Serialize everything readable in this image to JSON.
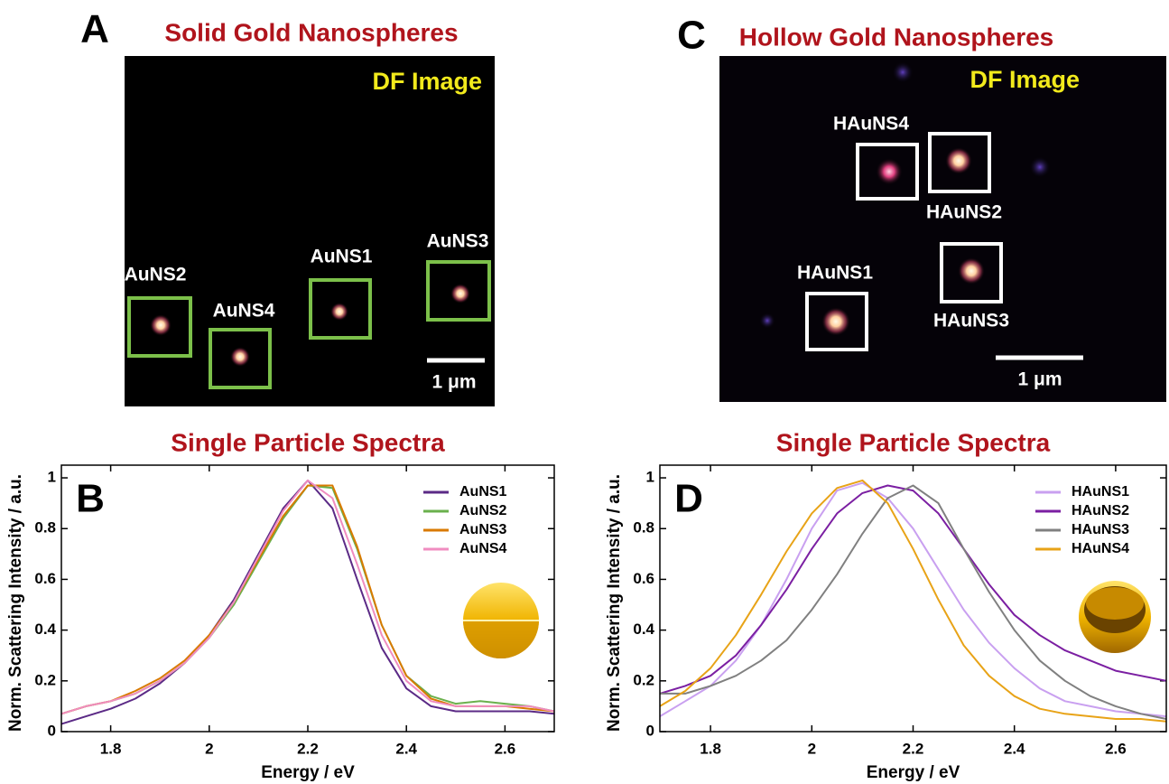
{
  "figure": {
    "panel_a": {
      "letter": "A",
      "title": "Solid Gold Nanospheres",
      "overlay": "DF Image",
      "scale_bar": "1 μm",
      "particles": [
        "AuNS2",
        "AuNS4",
        "AuNS1",
        "AuNS3"
      ]
    },
    "panel_c": {
      "letter": "C",
      "title": "Hollow Gold Nanospheres",
      "overlay": "DF Image",
      "scale_bar": "1 μm",
      "particles": [
        "HAuNS4",
        "HAuNS2",
        "HAuNS1",
        "HAuNS3"
      ]
    }
  },
  "chart_data": [
    {
      "type": "line",
      "letter": "B",
      "title": "Single Particle Spectra",
      "x_label": "Energy / eV",
      "y_label": "Norm. Scattering Intensity / a.u.",
      "x": [
        1.7,
        1.75,
        1.8,
        1.85,
        1.9,
        1.95,
        2.0,
        2.05,
        2.1,
        2.15,
        2.2,
        2.25,
        2.3,
        2.35,
        2.4,
        2.45,
        2.5,
        2.55,
        2.6,
        2.65,
        2.7
      ],
      "series": [
        {
          "name": "AuNS1",
          "color": "#5b2a86",
          "values": [
            0.03,
            0.06,
            0.09,
            0.13,
            0.19,
            0.27,
            0.38,
            0.52,
            0.7,
            0.88,
            0.99,
            0.88,
            0.6,
            0.33,
            0.17,
            0.1,
            0.08,
            0.08,
            0.08,
            0.08,
            0.07
          ]
        },
        {
          "name": "AuNS2",
          "color": "#6ab04c",
          "values": [
            0.07,
            0.1,
            0.12,
            0.15,
            0.2,
            0.27,
            0.37,
            0.5,
            0.67,
            0.84,
            0.97,
            0.96,
            0.72,
            0.42,
            0.22,
            0.14,
            0.11,
            0.12,
            0.11,
            0.1,
            0.08
          ]
        },
        {
          "name": "AuNS3",
          "color": "#d97a00",
          "values": [
            0.07,
            0.1,
            0.12,
            0.16,
            0.21,
            0.28,
            0.38,
            0.51,
            0.68,
            0.85,
            0.97,
            0.97,
            0.73,
            0.42,
            0.22,
            0.13,
            0.1,
            0.1,
            0.1,
            0.09,
            0.08
          ]
        },
        {
          "name": "AuNS4",
          "color": "#f08cc0",
          "values": [
            0.07,
            0.1,
            0.12,
            0.15,
            0.2,
            0.27,
            0.37,
            0.51,
            0.69,
            0.87,
            0.99,
            0.92,
            0.66,
            0.38,
            0.2,
            0.12,
            0.1,
            0.1,
            0.1,
            0.1,
            0.08
          ]
        }
      ],
      "xlim": [
        1.7,
        2.7
      ],
      "xticks": [
        1.8,
        2,
        2.2,
        2.4,
        2.6
      ],
      "ylim": [
        0,
        1.05
      ],
      "yticks": [
        0,
        0.2,
        0.4,
        0.6,
        0.8,
        1
      ],
      "legend": "upper right"
    },
    {
      "type": "line",
      "letter": "D",
      "title": "Single Particle Spectra",
      "x_label": "Energy / eV",
      "y_label": "Norm. Scattering Intensity / a.u.",
      "x": [
        1.7,
        1.75,
        1.8,
        1.85,
        1.9,
        1.95,
        2.0,
        2.05,
        2.1,
        2.15,
        2.2,
        2.25,
        2.3,
        2.35,
        2.4,
        2.45,
        2.5,
        2.55,
        2.6,
        2.65,
        2.7
      ],
      "series": [
        {
          "name": "HAuNS1",
          "color": "#c9a0f0",
          "values": [
            0.06,
            0.12,
            0.18,
            0.28,
            0.42,
            0.6,
            0.8,
            0.95,
            0.98,
            0.92,
            0.8,
            0.64,
            0.48,
            0.35,
            0.25,
            0.17,
            0.12,
            0.1,
            0.08,
            0.07,
            0.06
          ]
        },
        {
          "name": "HAuNS2",
          "color": "#7b1fa2",
          "values": [
            0.15,
            0.18,
            0.22,
            0.3,
            0.42,
            0.56,
            0.72,
            0.86,
            0.94,
            0.97,
            0.95,
            0.86,
            0.72,
            0.58,
            0.46,
            0.38,
            0.32,
            0.28,
            0.24,
            0.22,
            0.2
          ]
        },
        {
          "name": "HAuNS3",
          "color": "#808080",
          "values": [
            0.15,
            0.15,
            0.18,
            0.22,
            0.28,
            0.36,
            0.48,
            0.62,
            0.78,
            0.92,
            0.97,
            0.9,
            0.72,
            0.55,
            0.4,
            0.28,
            0.2,
            0.14,
            0.1,
            0.07,
            0.05
          ]
        },
        {
          "name": "HAuNS4",
          "color": "#e8a317",
          "values": [
            0.1,
            0.16,
            0.25,
            0.38,
            0.54,
            0.71,
            0.86,
            0.96,
            0.99,
            0.9,
            0.72,
            0.52,
            0.34,
            0.22,
            0.14,
            0.09,
            0.07,
            0.06,
            0.05,
            0.05,
            0.04
          ]
        }
      ],
      "xlim": [
        1.7,
        2.7
      ],
      "xticks": [
        1.8,
        2,
        2.2,
        2.4,
        2.6
      ],
      "ylim": [
        0,
        1.05
      ],
      "yticks": [
        0,
        0.2,
        0.4,
        0.6,
        0.8,
        1
      ],
      "legend": "upper right"
    }
  ]
}
